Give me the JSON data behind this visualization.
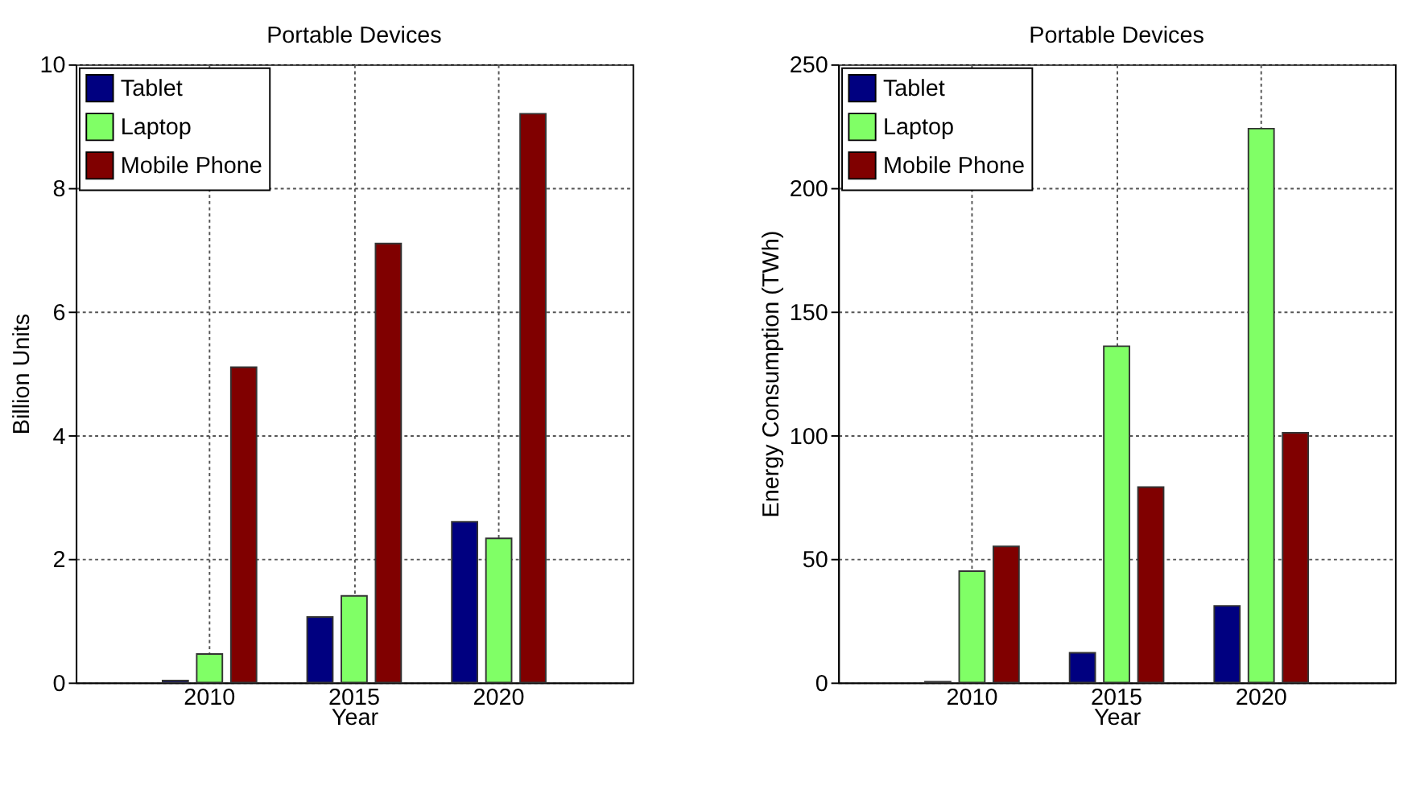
{
  "chart_data": [
    {
      "type": "bar",
      "title": "Portable Devices",
      "xlabel": "Year",
      "ylabel": "Billion Units",
      "categories": [
        "2010",
        "2015",
        "2020"
      ],
      "series": [
        {
          "name": "Tablet",
          "color": "#000080",
          "values": [
            0.03,
            1.06,
            2.6
          ]
        },
        {
          "name": "Laptop",
          "color": "#80ff66",
          "values": [
            0.46,
            1.4,
            2.33
          ]
        },
        {
          "name": "Mobile Phone",
          "color": "#800000",
          "values": [
            5.1,
            7.1,
            9.2
          ]
        }
      ],
      "ylim": [
        0,
        10
      ],
      "yticks": [
        0,
        2,
        4,
        6,
        8,
        10
      ],
      "grid": true,
      "legend": "top left"
    },
    {
      "type": "bar",
      "title": "Portable Devices",
      "xlabel": "Year",
      "ylabel": "Energy Consumption (TWh)",
      "categories": [
        "2010",
        "2015",
        "2020"
      ],
      "series": [
        {
          "name": "Tablet",
          "color": "#000080",
          "values": [
            0.3,
            12,
            31
          ]
        },
        {
          "name": "Laptop",
          "color": "#80ff66",
          "values": [
            45,
            136,
            224
          ]
        },
        {
          "name": "Mobile Phone",
          "color": "#800000",
          "values": [
            55,
            79,
            101
          ]
        }
      ],
      "ylim": [
        0,
        250
      ],
      "yticks": [
        0,
        50,
        100,
        150,
        200,
        250
      ],
      "grid": true,
      "legend": "top left"
    }
  ]
}
